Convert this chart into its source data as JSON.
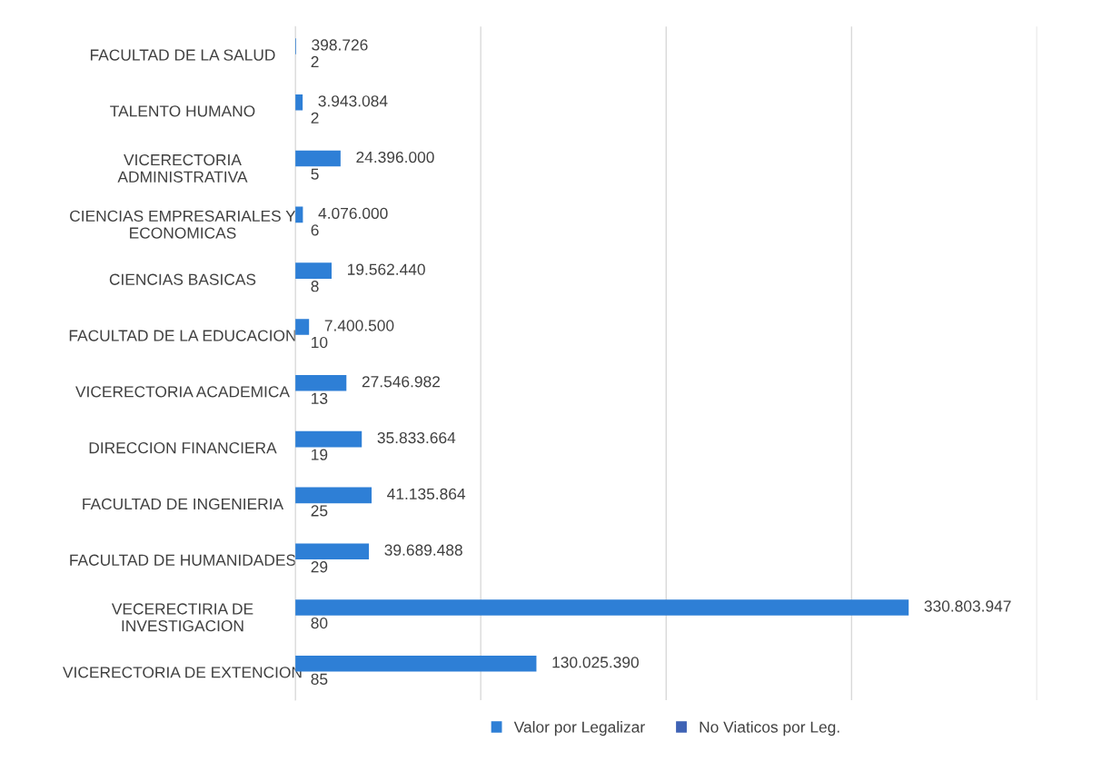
{
  "chart_data": {
    "type": "bar",
    "orientation": "horizontal",
    "categories": [
      "FACULTAD DE LA SALUD",
      "TALENTO HUMANO",
      "VICERECTORIA\nADMINISTRATIVA",
      "CIENCIAS EMPRESARIALES Y\nECONOMICAS",
      "CIENCIAS BASICAS",
      "FACULTAD DE LA EDUCACION",
      "VICERECTORIA ACADEMICA",
      "DIRECCION FINANCIERA",
      "FACULTAD DE INGENIERIA",
      "FACULTAD DE HUMANIDADES",
      "VECERECTIRIA DE\nINVESTIGACION",
      "VICERECTORIA DE EXTENCION"
    ],
    "series": [
      {
        "name": "Valor por Legalizar",
        "color": "#2e7fd6",
        "values": [
          398726,
          3943084,
          24396000,
          4076000,
          19562440,
          7400500,
          27546982,
          35833664,
          41135864,
          39689488,
          330803947,
          130025390
        ],
        "value_labels": [
          "398.726",
          "3.943.084",
          "24.396.000",
          "4.076.000",
          "19.562.440",
          "7.400.500",
          "27.546.982",
          "35.833.664",
          "41.135.864",
          "39.689.488",
          "330.803.947",
          "130.025.390"
        ]
      },
      {
        "name": "No Viaticos por Leg.",
        "color": "#3f63b5",
        "values": [
          2,
          2,
          5,
          6,
          8,
          10,
          13,
          19,
          25,
          29,
          80,
          85
        ],
        "value_labels": [
          "2",
          "2",
          "5",
          "6",
          "8",
          "10",
          "13",
          "19",
          "25",
          "29",
          "80",
          "85"
        ]
      }
    ],
    "xlim": [
      0,
      400000000
    ],
    "xticks": [
      {
        "value": 0,
        "label": null
      },
      {
        "value": 100000000,
        "label": null
      },
      {
        "value": 200000000,
        "label": null
      },
      {
        "value": 300000000,
        "label": null
      },
      {
        "value": 400000000,
        "label": null
      }
    ],
    "tick_labels": "y",
    "grid": "x",
    "legend": "bottom"
  }
}
